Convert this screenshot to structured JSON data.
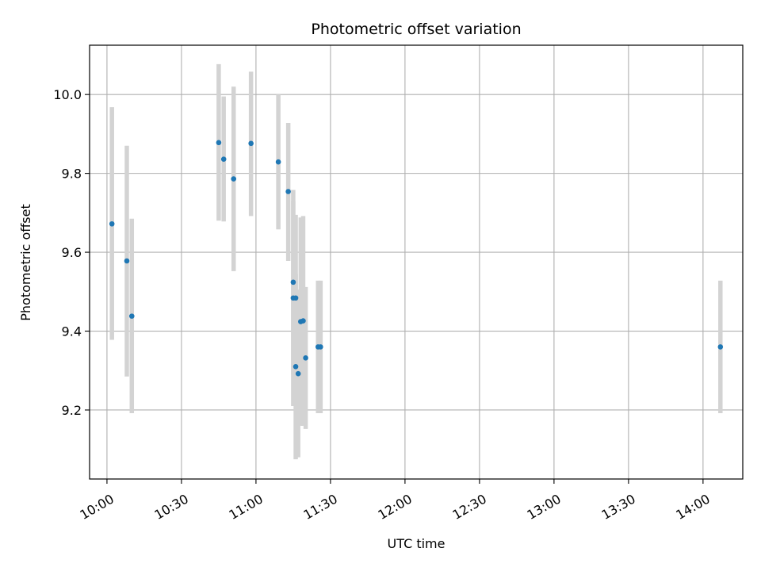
{
  "chart_data": {
    "type": "scatter",
    "title": "Photometric offset variation",
    "xlabel": "UTC time",
    "ylabel": "Photometric offset",
    "x_axis_type": "time",
    "xlim": [
      "09:53",
      "14:16"
    ],
    "ylim": [
      9.025,
      10.125
    ],
    "x_ticks": [
      "10:00",
      "10:30",
      "11:00",
      "11:30",
      "12:00",
      "12:30",
      "13:00",
      "13:30",
      "14:00"
    ],
    "y_ticks": [
      9.2,
      9.4,
      9.6,
      9.8,
      10.0
    ],
    "y_tick_labels": [
      "9.2",
      "9.4",
      "9.6",
      "9.8",
      "10.0"
    ],
    "grid": true,
    "marker_color": "#1f77b4",
    "errorbar_color": "#d3d3d3",
    "points": [
      {
        "x": "10:02",
        "y": 9.672,
        "ylow": 9.378,
        "yhigh": 9.968
      },
      {
        "x": "10:08",
        "y": 9.578,
        "ylow": 9.285,
        "yhigh": 9.87
      },
      {
        "x": "10:10",
        "y": 9.438,
        "ylow": 9.192,
        "yhigh": 9.685
      },
      {
        "x": "10:45",
        "y": 9.878,
        "ylow": 9.68,
        "yhigh": 10.077
      },
      {
        "x": "10:47",
        "y": 9.836,
        "ylow": 9.678,
        "yhigh": 9.995
      },
      {
        "x": "10:51",
        "y": 9.786,
        "ylow": 9.552,
        "yhigh": 10.02
      },
      {
        "x": "10:58",
        "y": 9.876,
        "ylow": 9.692,
        "yhigh": 10.058
      },
      {
        "x": "11:09",
        "y": 9.829,
        "ylow": 9.658,
        "yhigh": 10.0
      },
      {
        "x": "11:13",
        "y": 9.754,
        "ylow": 9.578,
        "yhigh": 9.928
      },
      {
        "x": "11:15",
        "y": 9.524,
        "ylow": 9.29,
        "yhigh": 9.758
      },
      {
        "x": "11:15",
        "y": 9.484,
        "ylow": 9.21,
        "yhigh": 9.73
      },
      {
        "x": "11:16",
        "y": 9.484,
        "ylow": 9.275,
        "yhigh": 9.695
      },
      {
        "x": "11:16",
        "y": 9.31,
        "ylow": 9.075,
        "yhigh": 9.545
      },
      {
        "x": "11:17",
        "y": 9.292,
        "ylow": 9.08,
        "yhigh": 9.505
      },
      {
        "x": "11:18",
        "y": 9.424,
        "ylow": 9.16,
        "yhigh": 9.688
      },
      {
        "x": "11:19",
        "y": 9.426,
        "ylow": 9.16,
        "yhigh": 9.692
      },
      {
        "x": "11:20",
        "y": 9.332,
        "ylow": 9.152,
        "yhigh": 9.512
      },
      {
        "x": "11:25",
        "y": 9.36,
        "ylow": 9.192,
        "yhigh": 9.528
      },
      {
        "x": "11:26",
        "y": 9.36,
        "ylow": 9.192,
        "yhigh": 9.528
      },
      {
        "x": "14:07",
        "y": 9.36,
        "ylow": 9.192,
        "yhigh": 9.528
      }
    ]
  }
}
